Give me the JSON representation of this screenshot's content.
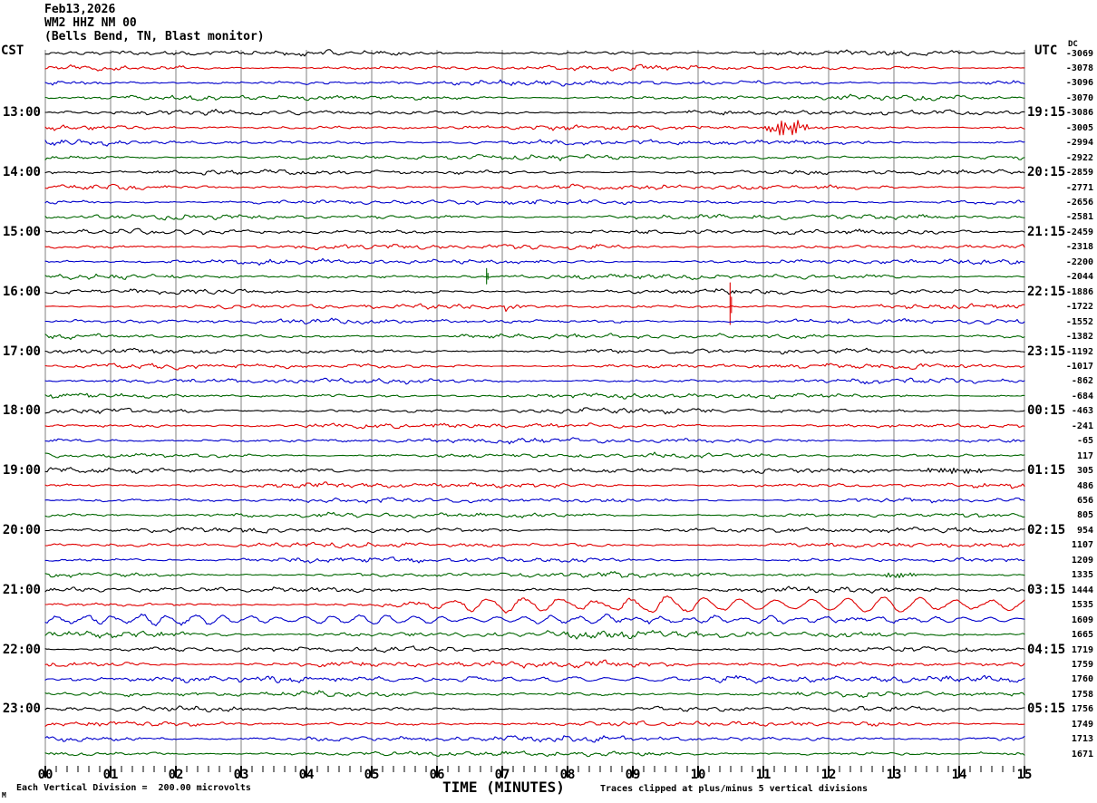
{
  "title": {
    "line1": "Feb13,2026",
    "line2": "WM2 HHZ NM 00",
    "line3": "(Bells Bend, TN, Blast monitor)"
  },
  "axes": {
    "left_header": "CST",
    "right_header": "UTC",
    "dc_header": "DC",
    "x_axis_label": "TIME (MINUTES)",
    "x_tick_labels": [
      "00",
      "01",
      "02",
      "03",
      "04",
      "05",
      "06",
      "07",
      "08",
      "09",
      "10",
      "11",
      "12",
      "13",
      "14",
      "15"
    ],
    "left_labels": [
      {
        "row": 4,
        "text": "13:00"
      },
      {
        "row": 8,
        "text": "14:00"
      },
      {
        "row": 12,
        "text": "15:00"
      },
      {
        "row": 16,
        "text": "16:00"
      },
      {
        "row": 20,
        "text": "17:00"
      },
      {
        "row": 24,
        "text": "18:00"
      },
      {
        "row": 28,
        "text": "19:00"
      },
      {
        "row": 32,
        "text": "20:00"
      },
      {
        "row": 36,
        "text": "21:00"
      },
      {
        "row": 40,
        "text": "22:00"
      },
      {
        "row": 44,
        "text": "23:00"
      }
    ],
    "right_labels": [
      {
        "row": 4,
        "text": "19:15"
      },
      {
        "row": 8,
        "text": "20:15"
      },
      {
        "row": 12,
        "text": "21:15"
      },
      {
        "row": 16,
        "text": "22:15"
      },
      {
        "row": 20,
        "text": "23:15"
      },
      {
        "row": 24,
        "text": "00:15"
      },
      {
        "row": 28,
        "text": "01:15"
      },
      {
        "row": 32,
        "text": "02:15"
      },
      {
        "row": 36,
        "text": "03:15"
      },
      {
        "row": 40,
        "text": "04:15"
      },
      {
        "row": 44,
        "text": "05:15"
      }
    ]
  },
  "footer": {
    "left_note": "Each Vertical Division =  200.00 microvolts",
    "right_note": "Traces clipped at plus/minus 5 vertical divisions",
    "corner_mark": "M"
  },
  "colors": {
    "black": "#000000",
    "red": "#e00000",
    "blue": "#0000cc",
    "green": "#006600",
    "grid": "#808080"
  },
  "chart_data": {
    "type": "line",
    "subtype": "helicorder-seismogram",
    "station": "WM2 HHZ NM 00",
    "minutes_per_row": 15,
    "x_range": [
      0,
      15
    ],
    "x_minor_per_major": 6,
    "vertical_division_microvolts": 200.0,
    "clip_divisions": 5,
    "rows": [
      {
        "cst": "12:00",
        "color": "black",
        "dc": -3069
      },
      {
        "cst": "12:15",
        "color": "red",
        "dc": -3078
      },
      {
        "cst": "12:30",
        "color": "blue",
        "dc": -3096
      },
      {
        "cst": "12:45",
        "color": "green",
        "dc": -3070
      },
      {
        "cst": "13:00",
        "color": "black",
        "dc": -3086
      },
      {
        "cst": "13:15",
        "color": "red",
        "dc": -3005,
        "events": [
          {
            "type": "burst",
            "start": 11.0,
            "end": 11.75,
            "amp": 7
          }
        ]
      },
      {
        "cst": "13:30",
        "color": "blue",
        "dc": -2994
      },
      {
        "cst": "13:45",
        "color": "green",
        "dc": -2922
      },
      {
        "cst": "14:00",
        "color": "black",
        "dc": -2859
      },
      {
        "cst": "14:15",
        "color": "red",
        "dc": -2771
      },
      {
        "cst": "14:30",
        "color": "blue",
        "dc": -2656
      },
      {
        "cst": "14:45",
        "color": "green",
        "dc": -2581
      },
      {
        "cst": "15:00",
        "color": "black",
        "dc": -2459
      },
      {
        "cst": "15:15",
        "color": "red",
        "dc": -2318
      },
      {
        "cst": "15:30",
        "color": "blue",
        "dc": -2200
      },
      {
        "cst": "15:45",
        "color": "green",
        "dc": -2044,
        "events": [
          {
            "type": "spike",
            "minute": 6.76,
            "amp": 9,
            "amp_down": 8
          }
        ]
      },
      {
        "cst": "16:00",
        "color": "black",
        "dc": -1886
      },
      {
        "cst": "16:15",
        "color": "red",
        "dc": -1722,
        "events": [
          {
            "type": "blob",
            "start": 7.05,
            "end": 7.35,
            "amp": 4.5
          },
          {
            "type": "spike",
            "minute": 10.49,
            "amp": 26,
            "amp_down": 20
          }
        ]
      },
      {
        "cst": "16:30",
        "color": "blue",
        "dc": -1552
      },
      {
        "cst": "16:45",
        "color": "green",
        "dc": -1382
      },
      {
        "cst": "17:00",
        "color": "black",
        "dc": -1192
      },
      {
        "cst": "17:15",
        "color": "red",
        "dc": -1017
      },
      {
        "cst": "17:30",
        "color": "blue",
        "dc": -862
      },
      {
        "cst": "17:45",
        "color": "green",
        "dc": -684
      },
      {
        "cst": "18:00",
        "color": "black",
        "dc": -463
      },
      {
        "cst": "18:15",
        "color": "red",
        "dc": -241
      },
      {
        "cst": "18:30",
        "color": "blue",
        "dc": -65
      },
      {
        "cst": "18:45",
        "color": "green",
        "dc": 117
      },
      {
        "cst": "19:00",
        "color": "black",
        "dc": 305,
        "events": [
          {
            "type": "burst",
            "start": 13.3,
            "end": 14.6,
            "amp": 3
          }
        ]
      },
      {
        "cst": "19:15",
        "color": "red",
        "dc": 486
      },
      {
        "cst": "19:30",
        "color": "blue",
        "dc": 656
      },
      {
        "cst": "19:45",
        "color": "green",
        "dc": 805
      },
      {
        "cst": "20:00",
        "color": "black",
        "dc": 954
      },
      {
        "cst": "20:15",
        "color": "red",
        "dc": 1107
      },
      {
        "cst": "20:30",
        "color": "blue",
        "dc": 1209
      },
      {
        "cst": "20:45",
        "color": "green",
        "dc": 1335,
        "events": [
          {
            "type": "burst",
            "start": 12.7,
            "end": 13.4,
            "amp": 3
          }
        ]
      },
      {
        "cst": "21:00",
        "color": "black",
        "dc": 1444
      },
      {
        "cst": "21:15",
        "color": "red",
        "dc": 1535,
        "events": [
          {
            "type": "wave",
            "start": 5.3,
            "end": 15,
            "amp": 8,
            "period": 0.55,
            "taper": -1
          }
        ]
      },
      {
        "cst": "21:30",
        "color": "blue",
        "dc": 1609,
        "events": [
          {
            "type": "wave",
            "start": 0,
            "end": 15,
            "amp": 5.5,
            "period": 0.42,
            "taper": 1
          }
        ]
      },
      {
        "cst": "21:45",
        "color": "green",
        "dc": 1665,
        "noise_mult": 1.5
      },
      {
        "cst": "22:00",
        "color": "black",
        "dc": 1719
      },
      {
        "cst": "22:15",
        "color": "red",
        "dc": 1759,
        "noise_mult": 1.3
      },
      {
        "cst": "22:30",
        "color": "blue",
        "dc": 1760,
        "noise_mult": 1.25,
        "events": [
          {
            "type": "wave",
            "start": 5,
            "end": 13,
            "amp": 2.5,
            "period": 0.5,
            "taper": 0
          }
        ]
      },
      {
        "cst": "22:45",
        "color": "green",
        "dc": 1758
      },
      {
        "cst": "23:00",
        "color": "black",
        "dc": 1756
      },
      {
        "cst": "23:15",
        "color": "red",
        "dc": 1749
      },
      {
        "cst": "23:30",
        "color": "blue",
        "dc": 1713,
        "noise_mult": 1.2
      },
      {
        "cst": "23:45",
        "color": "green",
        "dc": 1671
      }
    ]
  }
}
